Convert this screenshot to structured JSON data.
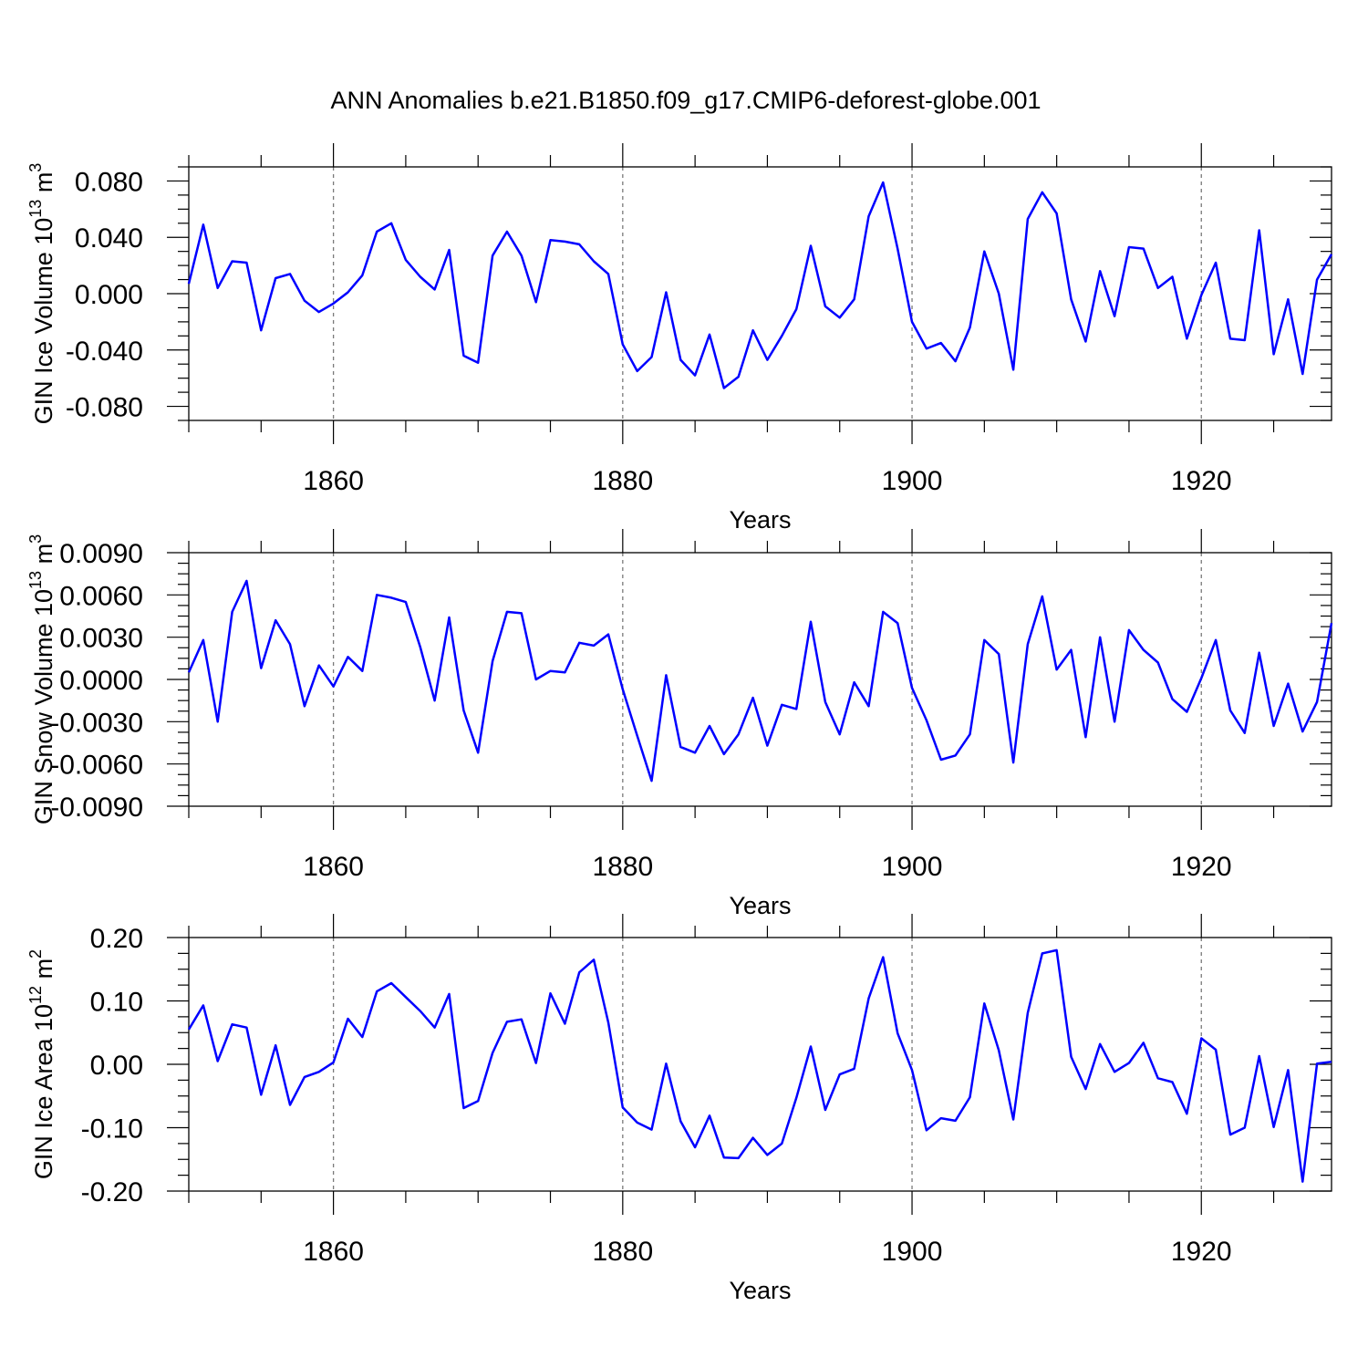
{
  "title": "ANN Anomalies b.e21.B1850.f09_g17.CMIP6-deforest-globe.001",
  "colors": {
    "line": "#0000ff",
    "grid": "#7a7a7a"
  },
  "chart_data": [
    {
      "type": "line",
      "name": "ice-volume",
      "ylabel": "GIN Ice Volume 10",
      "ylabel_exp": "13",
      "ylabel_unit": " m",
      "ylabel_unit_exp": "3",
      "xlabel": "Years",
      "xlim": [
        1850,
        1929
      ],
      "ylim": [
        -0.09,
        0.09
      ],
      "yticks": [
        "-0.080",
        "-0.040",
        "0.000",
        "0.040",
        "0.080"
      ],
      "ytick_values": [
        -0.08,
        -0.04,
        0.0,
        0.04,
        0.08
      ],
      "xticks": [
        "1860",
        "1880",
        "1900",
        "1920"
      ],
      "xtick_values": [
        1860,
        1880,
        1900,
        1920
      ],
      "grid": "dashed vertical lines at major year ticks",
      "x_start": 1850,
      "values": [
        0.007,
        0.049,
        0.004,
        0.023,
        0.022,
        -0.026,
        0.011,
        0.014,
        -0.005,
        -0.013,
        -0.007,
        0.001,
        0.013,
        0.044,
        0.05,
        0.024,
        0.012,
        0.003,
        0.031,
        -0.044,
        -0.049,
        0.027,
        0.044,
        0.027,
        -0.006,
        0.038,
        0.037,
        0.035,
        0.023,
        0.014,
        -0.036,
        -0.055,
        -0.045,
        0.001,
        -0.047,
        -0.058,
        -0.029,
        -0.067,
        -0.059,
        -0.026,
        -0.047,
        -0.03,
        -0.011,
        0.034,
        -0.009,
        -0.017,
        -0.004,
        0.055,
        0.079,
        0.032,
        -0.02,
        -0.039,
        -0.035,
        -0.048,
        -0.024,
        0.03,
        0.0,
        -0.054,
        0.053,
        0.072,
        0.057,
        -0.004,
        -0.034,
        0.016,
        -0.016,
        0.033,
        0.032,
        0.004,
        0.012,
        -0.032,
        -0.001,
        0.022,
        -0.032,
        -0.033,
        0.045,
        -0.043,
        -0.004,
        -0.057,
        0.01,
        0.028
      ]
    },
    {
      "type": "line",
      "name": "snow-volume",
      "ylabel": "GIN Snow Volume 10",
      "ylabel_exp": "13",
      "ylabel_unit": " m",
      "ylabel_unit_exp": "3",
      "xlabel": "Years",
      "xlim": [
        1850,
        1929
      ],
      "ylim": [
        -0.009,
        0.009
      ],
      "yticks": [
        "-0.0090",
        "-0.0060",
        "-0.0030",
        "0.0000",
        "0.0030",
        "0.0060",
        "0.0090"
      ],
      "ytick_values": [
        -0.009,
        -0.006,
        -0.003,
        0.0,
        0.003,
        0.006,
        0.009
      ],
      "xticks": [
        "1860",
        "1880",
        "1900",
        "1920"
      ],
      "xtick_values": [
        1860,
        1880,
        1900,
        1920
      ],
      "grid": "dashed vertical lines at major year ticks",
      "x_start": 1850,
      "values": [
        0.0005,
        0.0028,
        -0.003,
        0.0048,
        0.007,
        0.0008,
        0.0042,
        0.0025,
        -0.0019,
        0.001,
        -0.0005,
        0.0016,
        0.0006,
        0.006,
        0.0058,
        0.0055,
        0.0023,
        -0.0015,
        0.0044,
        -0.0022,
        -0.0052,
        0.0013,
        0.0048,
        0.0047,
        0.0,
        0.0006,
        0.0005,
        0.0026,
        0.0024,
        0.0032,
        -0.0007,
        -0.004,
        -0.0072,
        0.0003,
        -0.0048,
        -0.0052,
        -0.0033,
        -0.0053,
        -0.0039,
        -0.0013,
        -0.0047,
        -0.0018,
        -0.0021,
        0.0041,
        -0.0016,
        -0.0039,
        -0.0002,
        -0.0019,
        0.0048,
        0.004,
        -0.0006,
        -0.0029,
        -0.0057,
        -0.0054,
        -0.0039,
        0.0028,
        0.0018,
        -0.0059,
        0.0025,
        0.0059,
        0.0007,
        0.0021,
        -0.0041,
        0.003,
        -0.003,
        0.0035,
        0.0021,
        0.0012,
        -0.0014,
        -0.0023,
        0.0001,
        0.0028,
        -0.0022,
        -0.0038,
        0.0019,
        -0.0033,
        -0.0003,
        -0.0037,
        -0.0016,
        0.004
      ]
    },
    {
      "type": "line",
      "name": "ice-area",
      "ylabel": "GIN Ice Area 10",
      "ylabel_exp": "12",
      "ylabel_unit": " m",
      "ylabel_unit_exp": "2",
      "xlabel": "Years",
      "xlim": [
        1850,
        1929
      ],
      "ylim": [
        -0.2,
        0.2
      ],
      "yticks": [
        "-0.20",
        "-0.10",
        "0.00",
        "0.10",
        "0.20"
      ],
      "ytick_values": [
        -0.2,
        -0.1,
        0.0,
        0.1,
        0.2
      ],
      "xticks": [
        "1860",
        "1880",
        "1900",
        "1920"
      ],
      "xtick_values": [
        1860,
        1880,
        1900,
        1920
      ],
      "grid": "dashed vertical lines at major year ticks",
      "x_start": 1850,
      "values": [
        0.055,
        0.093,
        0.005,
        0.063,
        0.058,
        -0.048,
        0.03,
        -0.064,
        -0.02,
        -0.012,
        0.003,
        0.072,
        0.043,
        0.115,
        0.128,
        0.106,
        0.084,
        0.058,
        0.111,
        -0.069,
        -0.058,
        0.018,
        0.067,
        0.071,
        0.002,
        0.112,
        0.064,
        0.145,
        0.165,
        0.066,
        -0.068,
        -0.092,
        -0.103,
        0.001,
        -0.09,
        -0.131,
        -0.081,
        -0.147,
        -0.148,
        -0.116,
        -0.143,
        -0.125,
        -0.053,
        0.028,
        -0.072,
        -0.016,
        -0.007,
        0.104,
        0.169,
        0.049,
        -0.009,
        -0.104,
        -0.085,
        -0.089,
        -0.052,
        0.096,
        0.022,
        -0.087,
        0.081,
        0.175,
        0.18,
        0.012,
        -0.039,
        0.032,
        -0.012,
        0.002,
        0.034,
        -0.022,
        -0.028,
        -0.078,
        0.041,
        0.023,
        -0.111,
        -0.1,
        0.013,
        -0.099,
        -0.009,
        -0.185,
        0.001,
        0.004
      ]
    }
  ]
}
